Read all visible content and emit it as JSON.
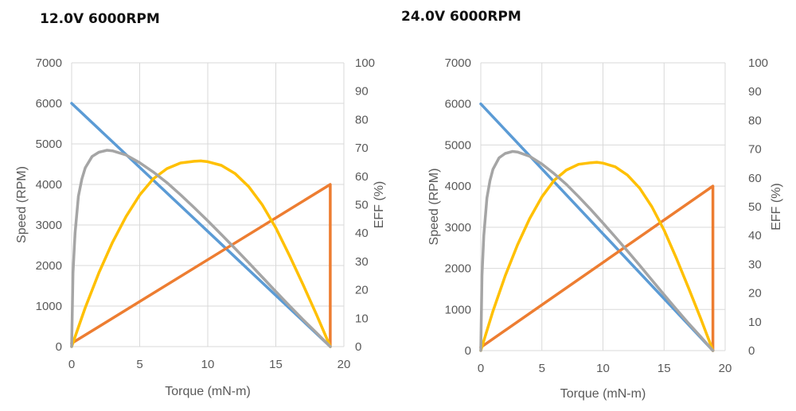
{
  "chart_data": [
    {
      "type": "line",
      "title": "12.0V  6000RPM",
      "xlabel": "Torque (mN-m)",
      "ylabel": "Speed (RPM)",
      "y2label": "EFF (%)",
      "xlim": [
        0,
        20
      ],
      "ylim": [
        0,
        7000
      ],
      "y2lim": [
        0,
        100
      ],
      "xticks": [
        0,
        5,
        10,
        15,
        20
      ],
      "yticks": [
        0,
        1000,
        2000,
        3000,
        4000,
        5000,
        6000,
        7000
      ],
      "y2ticks": [
        0,
        10,
        20,
        30,
        40,
        50,
        60,
        70,
        80,
        90,
        100
      ],
      "grid": true,
      "series": [
        {
          "color": "#5B9BD5",
          "axis": "y",
          "x": [
            0,
            19
          ],
          "y": [
            6000,
            0
          ]
        },
        {
          "color": "#ED7D31",
          "axis": "y",
          "x": [
            0,
            19,
            19
          ],
          "y": [
            80,
            4000,
            0
          ]
        },
        {
          "color": "#FFC000",
          "axis": "y",
          "x": [
            0,
            1,
            2,
            3,
            4,
            5,
            6,
            7,
            8,
            9,
            9.5,
            10,
            11,
            12,
            13,
            14,
            15,
            16,
            17,
            18,
            19
          ],
          "y": [
            0,
            960,
            1820,
            2570,
            3210,
            3740,
            4140,
            4390,
            4530,
            4570,
            4580,
            4560,
            4470,
            4270,
            3950,
            3500,
            2930,
            2250,
            1530,
            780,
            0
          ]
        },
        {
          "color": "#A5A5A5",
          "axis": "y2",
          "x": [
            0,
            0.1,
            0.25,
            0.5,
            0.75,
            1,
            1.5,
            2,
            2.6,
            3,
            4,
            5,
            6,
            7,
            8,
            9,
            10,
            11,
            12,
            13,
            14,
            15,
            16,
            17,
            18,
            19
          ],
          "y": [
            0,
            26,
            40,
            53,
            59,
            63,
            67,
            68.5,
            69.2,
            69,
            67.5,
            64.8,
            61.5,
            57.8,
            53.5,
            49,
            44.3,
            39.5,
            34.6,
            29.6,
            24.5,
            19.4,
            14.4,
            9.5,
            4.8,
            0
          ]
        }
      ]
    },
    {
      "type": "line",
      "title": "24.0V  6000RPM",
      "xlabel": "Torque (mN-m)",
      "ylabel": "Speed (RPM)",
      "y2label": "EFF (%)",
      "xlim": [
        0,
        20
      ],
      "ylim": [
        0,
        7000
      ],
      "y2lim": [
        0,
        100
      ],
      "xticks": [
        0,
        5,
        10,
        15,
        20
      ],
      "yticks": [
        0,
        1000,
        2000,
        3000,
        4000,
        5000,
        6000,
        7000
      ],
      "y2ticks": [
        0,
        10,
        20,
        30,
        40,
        50,
        60,
        70,
        80,
        90,
        100
      ],
      "grid": true,
      "series": [
        {
          "color": "#5B9BD5",
          "axis": "y",
          "x": [
            0,
            19
          ],
          "y": [
            6000,
            0
          ]
        },
        {
          "color": "#ED7D31",
          "axis": "y",
          "x": [
            0,
            19,
            19
          ],
          "y": [
            80,
            4000,
            0
          ]
        },
        {
          "color": "#FFC000",
          "axis": "y",
          "x": [
            0,
            1,
            2,
            3,
            4,
            5,
            6,
            7,
            8,
            9,
            9.5,
            10,
            11,
            12,
            13,
            14,
            15,
            16,
            17,
            18,
            19
          ],
          "y": [
            0,
            960,
            1820,
            2570,
            3210,
            3740,
            4140,
            4390,
            4530,
            4570,
            4580,
            4560,
            4470,
            4270,
            3950,
            3500,
            2930,
            2250,
            1530,
            780,
            0
          ]
        },
        {
          "color": "#A5A5A5",
          "axis": "y2",
          "x": [
            0,
            0.1,
            0.25,
            0.5,
            0.75,
            1,
            1.5,
            2,
            2.6,
            3,
            4,
            5,
            6,
            7,
            8,
            9,
            10,
            11,
            12,
            13,
            14,
            15,
            16,
            17,
            18,
            19
          ],
          "y": [
            0,
            26,
            40,
            53,
            59,
            63,
            67,
            68.5,
            69.2,
            69,
            67.5,
            64.8,
            61.5,
            57.8,
            53.5,
            49,
            44.3,
            39.5,
            34.6,
            29.6,
            24.5,
            19.4,
            14.4,
            9.5,
            4.8,
            0
          ]
        }
      ]
    }
  ]
}
